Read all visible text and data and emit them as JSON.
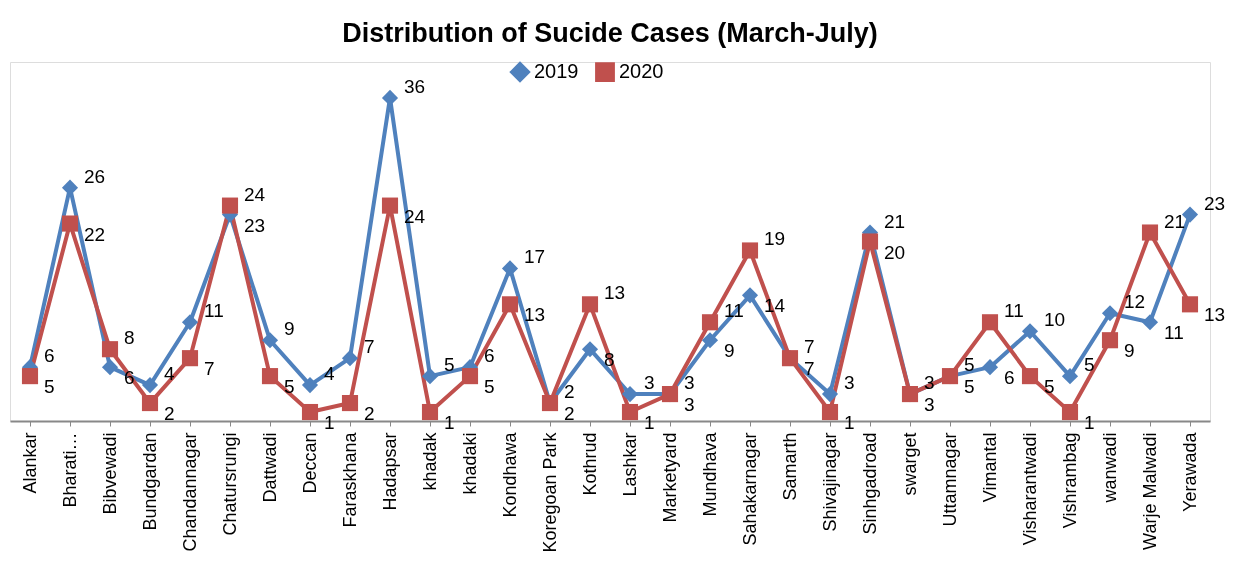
{
  "chart_data": {
    "type": "line",
    "title": "Distribution of Sucide Cases (March-July)",
    "categories": [
      "Alankar",
      "Bharati…",
      "Bibvewadi",
      "Bundgardan",
      "Chandannagar",
      "Chatursrungi",
      "Dattwadi",
      "Deccan",
      "Faraskhana",
      "Hadapsar",
      "khadak",
      "khadaki",
      "Kondhawa",
      "Koregoan Park",
      "Kothrud",
      "Lashkar",
      "Marketyard",
      "Mundhava",
      "Sahakarnagar",
      "Samarth",
      "Shivajinagar",
      "Sinhgadroad",
      "swarget",
      "Uttamnagar",
      "Vimantal",
      "Visharantwadi",
      "Vishrambag",
      "wanwadi",
      "Warje Malwadi",
      "Yerawada"
    ],
    "series": [
      {
        "name": "2019",
        "color": "#4f81bd",
        "marker": "diamond",
        "values": [
          6,
          26,
          6,
          4,
          11,
          23,
          9,
          4,
          7,
          36,
          5,
          6,
          17,
          2,
          8,
          3,
          3,
          9,
          14,
          7,
          3,
          21,
          3,
          5,
          6,
          10,
          5,
          12,
          11,
          23
        ]
      },
      {
        "name": "2020",
        "color": "#c0504d",
        "marker": "square",
        "values": [
          5,
          22,
          8,
          2,
          7,
          24,
          5,
          1,
          2,
          24,
          1,
          5,
          13,
          2,
          13,
          1,
          3,
          11,
          19,
          7,
          1,
          20,
          3,
          5,
          11,
          5,
          1,
          9,
          21,
          13
        ]
      }
    ],
    "data_labels": true,
    "legend": "top",
    "grid": false,
    "line_style": "solid",
    "tick_labels": "x"
  }
}
